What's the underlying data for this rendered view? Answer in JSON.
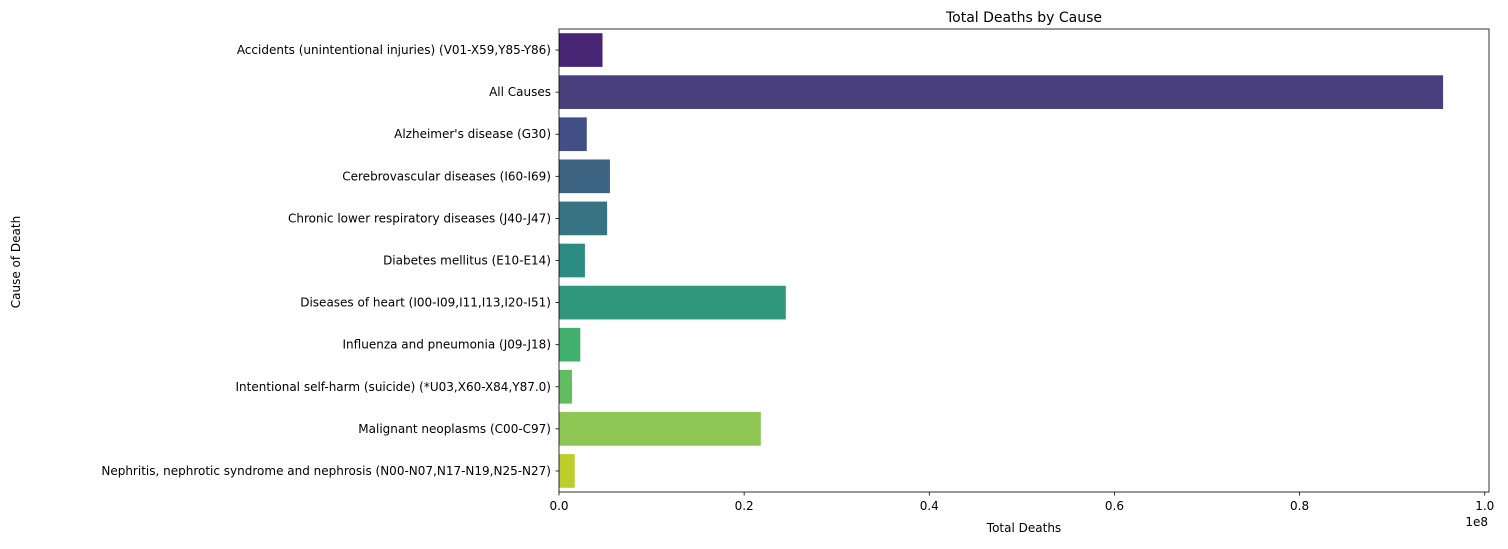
{
  "chart_data": {
    "type": "bar",
    "orientation": "horizontal",
    "title": "Total Deaths by Cause",
    "xlabel": "Total Deaths",
    "ylabel": "Cause of Death",
    "x_offset_label": "1e8",
    "x_scale": 100000000,
    "xlim": [
      0,
      1.0
    ],
    "x_ticks": [
      0.0,
      0.2,
      0.4,
      0.6,
      0.8,
      1.0
    ],
    "x_tick_labels": [
      "0.0",
      "0.2",
      "0.4",
      "0.6",
      "0.8",
      "1.0"
    ],
    "grid": false,
    "legend": "none",
    "categories": [
      "Accidents (unintentional injuries) (V01-X59,Y85-Y86)",
      "All Causes",
      "Alzheimer's disease (G30)",
      "Cerebrovascular diseases (I60-I69)",
      "Chronic lower respiratory diseases (J40-J47)",
      "Diabetes mellitus (E10-E14)",
      "Diseases of heart (I00-I09,I11,I13,I20-I51)",
      "Influenza and pneumonia (J09-J18)",
      "Intentional self-harm (suicide) (*U03,X60-X84,Y87.0)",
      "Malignant neoplasms (C00-C97)",
      "Nephritis, nephrotic syndrome and nephrosis (N00-N07,N17-N19,N25-N27)"
    ],
    "values": [
      4700000,
      95500000,
      3000000,
      5500000,
      5200000,
      2800000,
      24500000,
      2300000,
      1400000,
      21800000,
      1700000
    ],
    "colors": [
      "#482475",
      "#4a3f7d",
      "#414f86",
      "#3c6282",
      "#367483",
      "#2a8c83",
      "#31977b",
      "#41b06f",
      "#62bc60",
      "#8dc653",
      "#bdcd2b"
    ]
  }
}
